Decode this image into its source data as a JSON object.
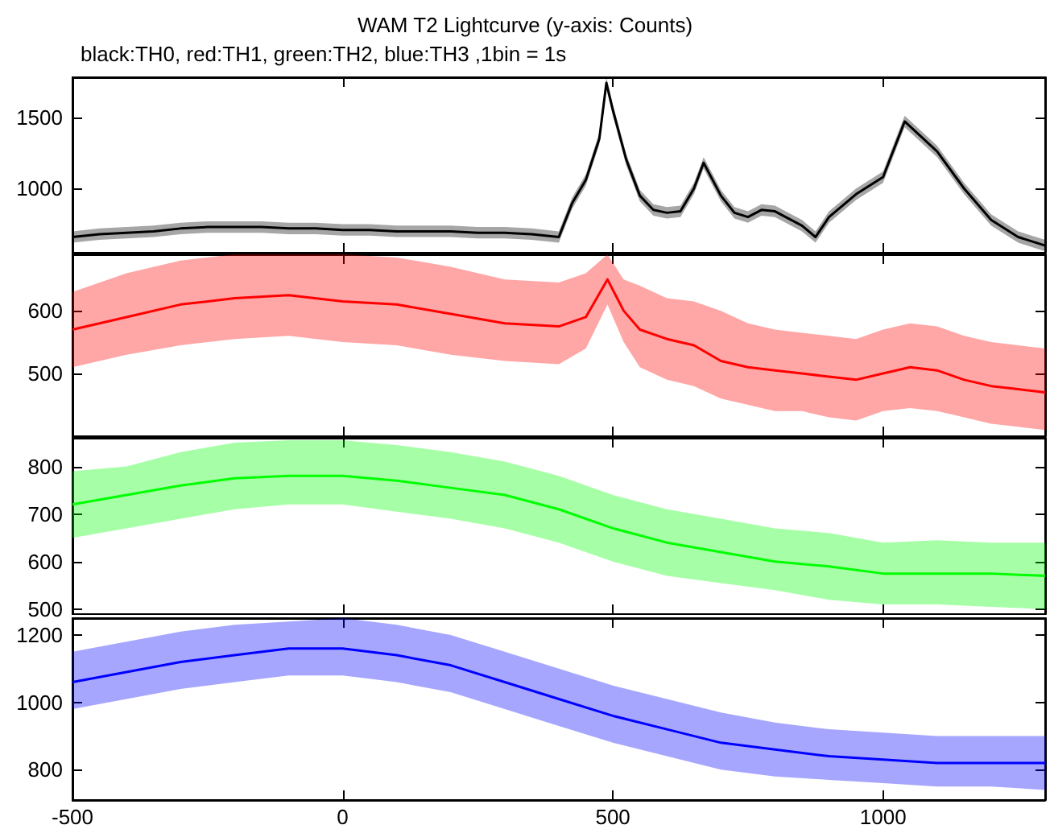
{
  "chart_data": [
    {
      "type": "line",
      "title": "WAM T2 Lightcurve (y-axis: Counts)",
      "subtitle": "black:TH0, red:TH1, green:TH2, blue:TH3 ,1bin = 1s",
      "xlim": [
        -500,
        1300
      ],
      "xticks": [
        -500,
        0,
        500,
        1000
      ],
      "ylim": [
        550,
        1780
      ],
      "yticks": [
        1000,
        1500
      ],
      "tick_labels": "y",
      "x": [
        -500,
        -450,
        -400,
        -350,
        -300,
        -250,
        -200,
        -150,
        -100,
        -50,
        0,
        50,
        100,
        150,
        200,
        250,
        300,
        350,
        400,
        425,
        450,
        475,
        488,
        500,
        525,
        550,
        575,
        600,
        625,
        650,
        668,
        700,
        725,
        750,
        775,
        800,
        850,
        875,
        900,
        950,
        1000,
        1040,
        1100,
        1150,
        1200,
        1250,
        1300
      ],
      "series": [
        {
          "color": "#000000",
          "values": [
            660,
            680,
            690,
            700,
            720,
            730,
            730,
            730,
            720,
            720,
            710,
            710,
            700,
            700,
            700,
            690,
            690,
            680,
            660,
            900,
            1060,
            1350,
            1740,
            1550,
            1200,
            950,
            850,
            830,
            840,
            1000,
            1180,
            950,
            830,
            800,
            850,
            840,
            740,
            660,
            800,
            960,
            1080,
            1470,
            1260,
            1000,
            780,
            660,
            600
          ],
          "lower": [
            620,
            640,
            650,
            660,
            680,
            690,
            690,
            690,
            680,
            680,
            670,
            670,
            660,
            660,
            660,
            650,
            650,
            640,
            620,
            860,
            1020,
            1310,
            1700,
            1510,
            1160,
            910,
            810,
            790,
            800,
            960,
            1140,
            910,
            790,
            760,
            810,
            800,
            700,
            620,
            760,
            920,
            1040,
            1430,
            1220,
            960,
            740,
            620,
            560
          ],
          "upper": [
            700,
            720,
            730,
            740,
            760,
            770,
            770,
            770,
            760,
            760,
            750,
            750,
            740,
            740,
            740,
            730,
            730,
            720,
            700,
            940,
            1100,
            1390,
            1780,
            1590,
            1240,
            990,
            890,
            870,
            880,
            1040,
            1220,
            990,
            870,
            840,
            890,
            880,
            780,
            700,
            840,
            1000,
            1120,
            1510,
            1300,
            1040,
            820,
            700,
            640
          ]
        }
      ]
    },
    {
      "type": "line",
      "xlim": [
        -500,
        1300
      ],
      "xticks": [
        -500,
        0,
        500,
        1000
      ],
      "ylim": [
        400,
        690
      ],
      "yticks": [
        500,
        600
      ],
      "tick_labels": "y",
      "x": [
        -500,
        -400,
        -300,
        -200,
        -100,
        0,
        100,
        200,
        300,
        400,
        450,
        490,
        520,
        550,
        600,
        650,
        700,
        750,
        800,
        850,
        900,
        950,
        1000,
        1050,
        1100,
        1150,
        1200,
        1250,
        1300
      ],
      "series": [
        {
          "color": "#ff0000",
          "values": [
            570,
            590,
            610,
            620,
            625,
            615,
            610,
            595,
            580,
            575,
            590,
            650,
            600,
            570,
            555,
            545,
            520,
            510,
            505,
            500,
            495,
            490,
            500,
            510,
            505,
            490,
            480,
            475,
            470
          ],
          "lower": [
            510,
            530,
            545,
            555,
            560,
            550,
            545,
            530,
            520,
            515,
            540,
            610,
            550,
            510,
            490,
            480,
            460,
            450,
            440,
            440,
            430,
            425,
            440,
            445,
            440,
            430,
            420,
            415,
            410
          ],
          "upper": [
            630,
            660,
            680,
            690,
            690,
            690,
            685,
            670,
            650,
            645,
            660,
            690,
            650,
            640,
            620,
            615,
            600,
            580,
            570,
            565,
            560,
            555,
            570,
            580,
            575,
            560,
            550,
            545,
            540
          ]
        }
      ]
    },
    {
      "type": "line",
      "xlim": [
        -500,
        1300
      ],
      "xticks": [
        -500,
        0,
        500,
        1000
      ],
      "ylim": [
        490,
        860
      ],
      "yticks": [
        500,
        600,
        700,
        800
      ],
      "tick_labels": "y",
      "x": [
        -500,
        -400,
        -300,
        -200,
        -100,
        0,
        100,
        200,
        300,
        400,
        500,
        600,
        700,
        800,
        900,
        1000,
        1100,
        1200,
        1300
      ],
      "series": [
        {
          "color": "#00ff00",
          "values": [
            720,
            740,
            760,
            775,
            780,
            780,
            770,
            755,
            740,
            710,
            670,
            640,
            620,
            600,
            590,
            575,
            575,
            575,
            570
          ],
          "lower": [
            650,
            670,
            690,
            710,
            720,
            720,
            705,
            690,
            670,
            640,
            600,
            570,
            555,
            540,
            520,
            510,
            510,
            505,
            500
          ],
          "upper": [
            790,
            800,
            830,
            850,
            855,
            855,
            845,
            830,
            810,
            780,
            740,
            710,
            690,
            670,
            660,
            640,
            645,
            640,
            640
          ]
        }
      ]
    },
    {
      "type": "line",
      "xlim": [
        -500,
        1300
      ],
      "xticks": [
        -500,
        0,
        500,
        1000
      ],
      "ylim": [
        710,
        1250
      ],
      "yticks": [
        800,
        1000,
        1200
      ],
      "x": [
        -500,
        -400,
        -300,
        -200,
        -100,
        0,
        100,
        200,
        300,
        400,
        500,
        600,
        700,
        800,
        900,
        1000,
        1100,
        1200,
        1300
      ],
      "series": [
        {
          "color": "#0000ff",
          "values": [
            1060,
            1090,
            1120,
            1140,
            1160,
            1160,
            1140,
            1110,
            1060,
            1010,
            960,
            920,
            880,
            860,
            840,
            830,
            820,
            820,
            820
          ],
          "lower": [
            980,
            1010,
            1040,
            1060,
            1080,
            1080,
            1060,
            1030,
            980,
            930,
            880,
            840,
            800,
            780,
            770,
            760,
            750,
            750,
            740
          ],
          "upper": [
            1150,
            1180,
            1210,
            1230,
            1240,
            1250,
            1230,
            1200,
            1150,
            1100,
            1050,
            1010,
            970,
            940,
            920,
            910,
            900,
            900,
            900
          ]
        }
      ]
    }
  ]
}
